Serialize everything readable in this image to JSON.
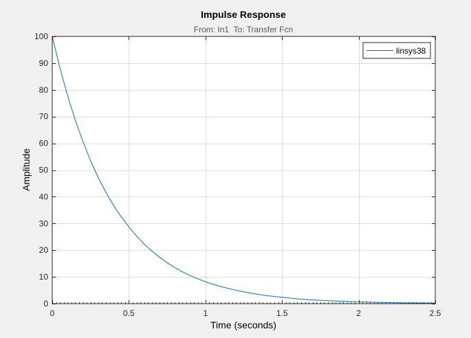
{
  "figure": {
    "background": "#f0f0f0",
    "axes_background": "#ffffff"
  },
  "chart_data": {
    "type": "line",
    "title": "Impulse Response",
    "subtitle": "From: In1  To: Transfer Fcn",
    "xlabel": "Time (seconds)",
    "ylabel": "Amplitude",
    "xlim": [
      0,
      2.5
    ],
    "ylim": [
      0,
      100
    ],
    "xticks": [
      0,
      0.5,
      1,
      1.5,
      2,
      2.5
    ],
    "xtick_labels": [
      "0",
      "0.5",
      "1",
      "1.5",
      "2",
      "2.5"
    ],
    "yticks": [
      0,
      10,
      20,
      30,
      40,
      50,
      60,
      70,
      80,
      90,
      100
    ],
    "ytick_labels": [
      "0",
      "10",
      "20",
      "30",
      "40",
      "50",
      "60",
      "70",
      "80",
      "90",
      "100"
    ],
    "grid": true,
    "legend": {
      "position": "top-right",
      "entries": [
        "linsys38"
      ]
    },
    "series": [
      {
        "name": "linsys38",
        "color": "#0072bd",
        "x": [
          0,
          0.05,
          0.1,
          0.15,
          0.2,
          0.25,
          0.3,
          0.35,
          0.4,
          0.45,
          0.5,
          0.55,
          0.6,
          0.65,
          0.7,
          0.75,
          0.8,
          0.85,
          0.9,
          0.95,
          1.0,
          1.1,
          1.2,
          1.3,
          1.4,
          1.5,
          1.6,
          1.7,
          1.8,
          1.9,
          2.0,
          2.1,
          2.2,
          2.3,
          2.4,
          2.5
        ],
        "y": [
          100,
          88.2,
          77.9,
          68.7,
          60.7,
          53.5,
          47.2,
          41.7,
          36.8,
          32.5,
          28.7,
          25.3,
          22.3,
          19.7,
          17.4,
          15.3,
          13.5,
          11.9,
          10.5,
          9.3,
          8.2,
          6.4,
          5.0,
          3.9,
          3.0,
          2.4,
          1.8,
          1.4,
          1.1,
          0.9,
          0.7,
          0.5,
          0.4,
          0.3,
          0.25,
          0.2
        ]
      }
    ]
  }
}
